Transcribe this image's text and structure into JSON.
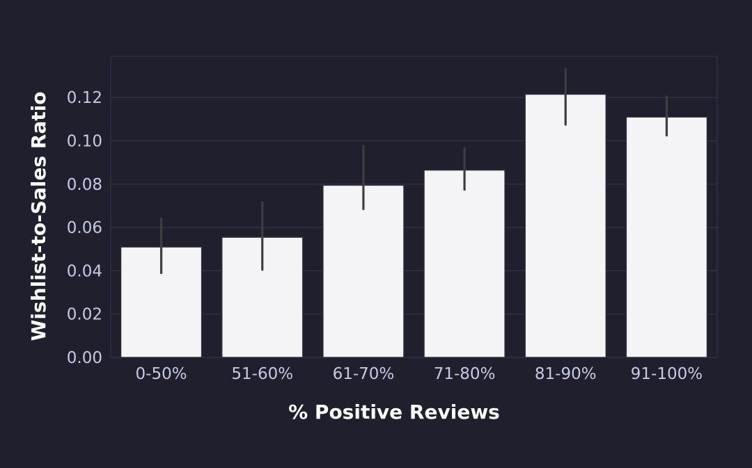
{
  "chart_data": {
    "type": "bar",
    "categories": [
      "0-50%",
      "51-60%",
      "61-70%",
      "71-80%",
      "81-90%",
      "91-100%"
    ],
    "values": [
      0.051,
      0.0555,
      0.0795,
      0.0865,
      0.1215,
      0.111
    ],
    "error_low": [
      0.039,
      0.0405,
      0.0685,
      0.0775,
      0.1075,
      0.1025
    ],
    "error_high": [
      0.064,
      0.0715,
      0.0975,
      0.0965,
      0.133,
      0.1205
    ],
    "xlabel": "% Positive Reviews",
    "ylabel": "Wishlist-to-Sales Ratio",
    "ylim": [
      0,
      0.139
    ],
    "yticks": [
      0.0,
      0.02,
      0.04,
      0.06,
      0.08,
      0.1,
      0.12
    ],
    "ytick_labels": [
      "0.00",
      "0.02",
      "0.04",
      "0.06",
      "0.08",
      "0.10",
      "0.12"
    ],
    "grid": true,
    "colors": {
      "background": "#201f2e",
      "plot_frame": "#34344a",
      "grid": "#34344a",
      "bar_fill": "#f4f4f7",
      "bar_edge": "#2e2d3d",
      "error_bar": "#3e3e3e",
      "tick_text": "#c5cbe6",
      "axis_title": "#ffffff"
    }
  }
}
